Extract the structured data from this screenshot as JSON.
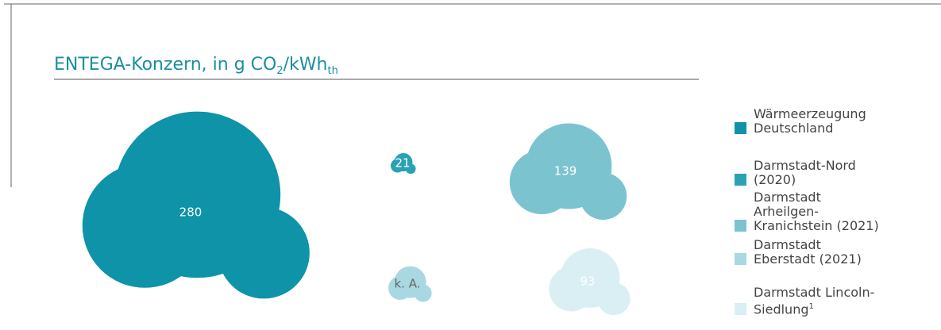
{
  "chart_data": {
    "type": "cloud-bubble",
    "title": [
      "ENTEGA-Konzern, in g CO",
      "2",
      "/kWh",
      "th"
    ],
    "categories": [
      "Wärmeerzeugung Deutschland",
      "Darmstadt-Nord (2020)",
      "Darmstadt Arheilgen-Kranichstein (2021)",
      "Darmstadt Eberstadt (2021)",
      "Darmstadt Lincoln-Siedlung"
    ],
    "category_notes": [
      null,
      null,
      null,
      null,
      "1"
    ],
    "values": [
      280,
      21,
      139,
      null,
      93
    ],
    "value_labels": [
      "280",
      "21",
      "139",
      "k. A.",
      "93"
    ],
    "colors": [
      "#0e93a8",
      "#2aa2b4",
      "#7cc3d0",
      "#a9d8e2",
      "#daeff3"
    ]
  }
}
